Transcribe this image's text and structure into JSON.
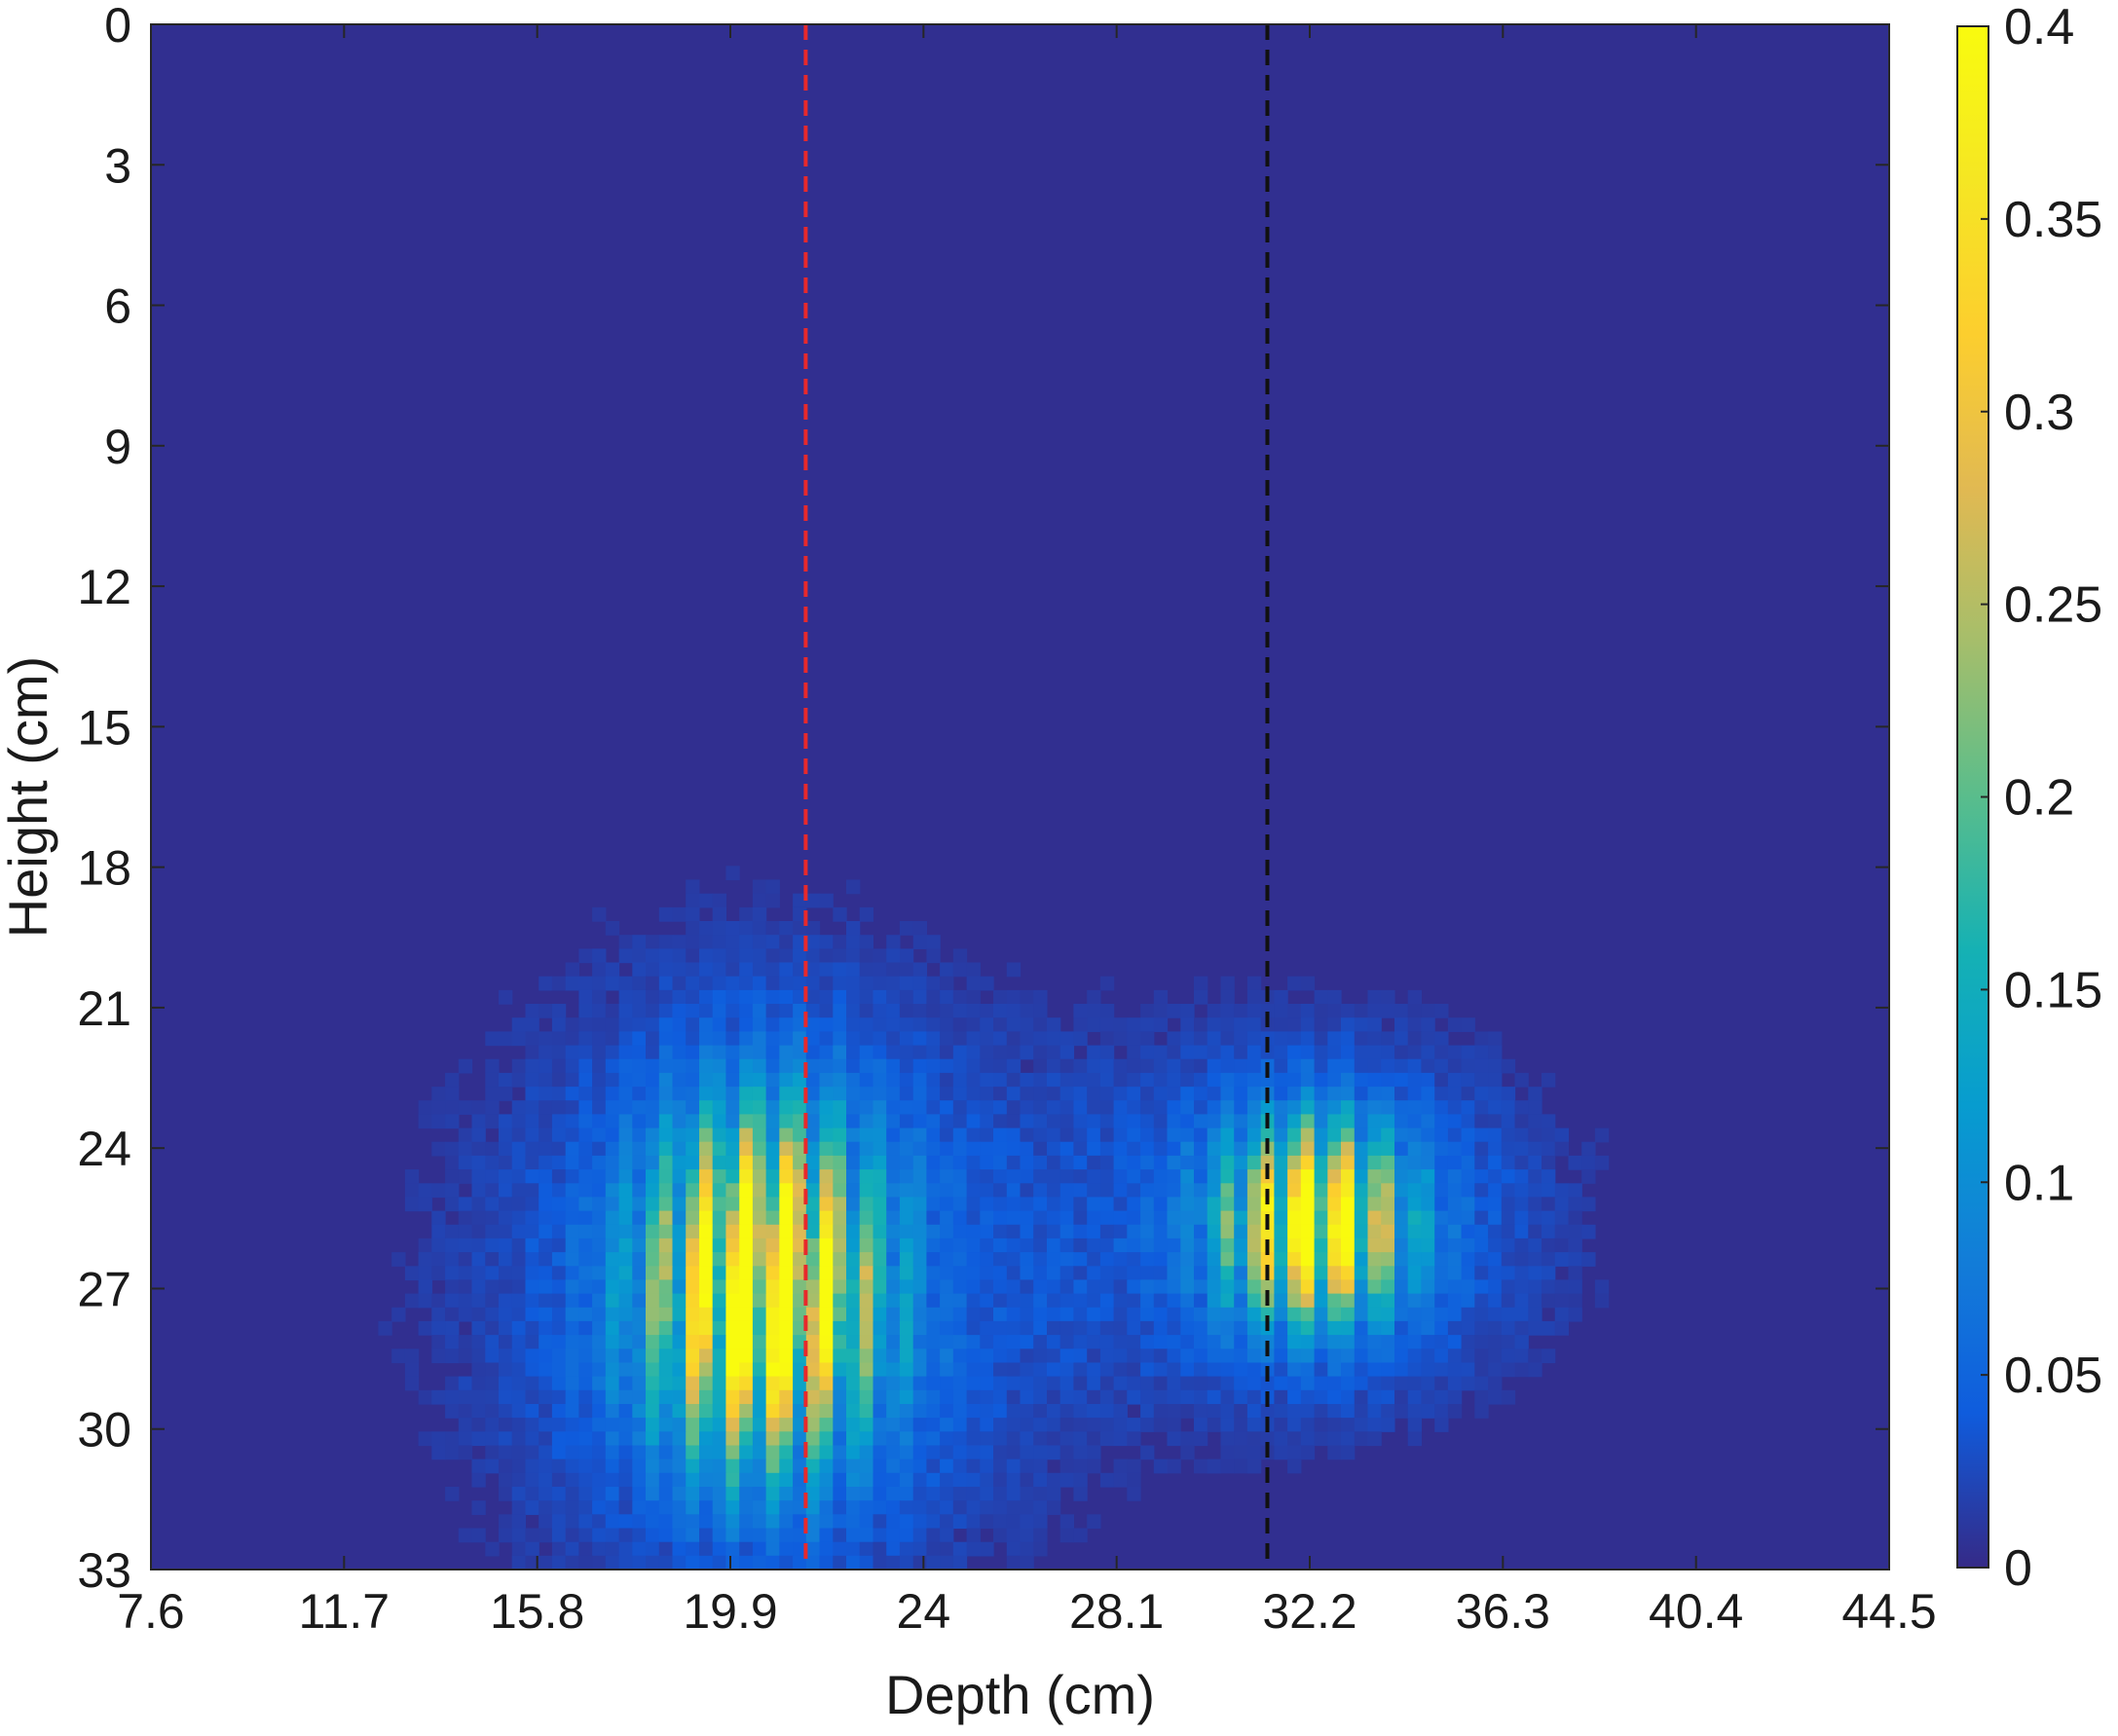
{
  "chart_data": {
    "type": "heatmap",
    "title": "",
    "xlabel": "Depth (cm)",
    "ylabel": "Height (cm)",
    "xlim": [
      7.6,
      44.5
    ],
    "ylim": [
      0,
      33
    ],
    "y_reversed": true,
    "x_ticks": [
      "7.6",
      "11.7",
      "15.8",
      "19.9",
      "24",
      "28.1",
      "32.2",
      "36.3",
      "40.4",
      "44.5"
    ],
    "y_ticks": [
      "0",
      "3",
      "6",
      "9",
      "12",
      "15",
      "18",
      "21",
      "24",
      "27",
      "30",
      "33"
    ],
    "colorbar": {
      "colormap": "parula",
      "range": [
        0,
        0.4
      ],
      "ticks": [
        "0",
        "0.05",
        "0.1",
        "0.15",
        "0.2",
        "0.25",
        "0.3",
        "0.35",
        "0.4"
      ]
    },
    "grid": false,
    "reference_lines": [
      {
        "orientation": "vertical",
        "x": 21.5,
        "color": "#e8292b",
        "style": "dashed"
      },
      {
        "orientation": "vertical",
        "x": 31.3,
        "color": "#111111",
        "style": "dashed"
      }
    ],
    "blobs": [
      {
        "x_center": 20.6,
        "y_center": 27.0,
        "x_spread": 1.6,
        "y_spread": 2.4,
        "peak": 0.48,
        "stripe_period": 0.9
      },
      {
        "x_center": 32.3,
        "y_center": 25.6,
        "x_spread": 1.3,
        "y_spread": 1.4,
        "peak": 0.42,
        "stripe_period": 0.85
      }
    ]
  }
}
